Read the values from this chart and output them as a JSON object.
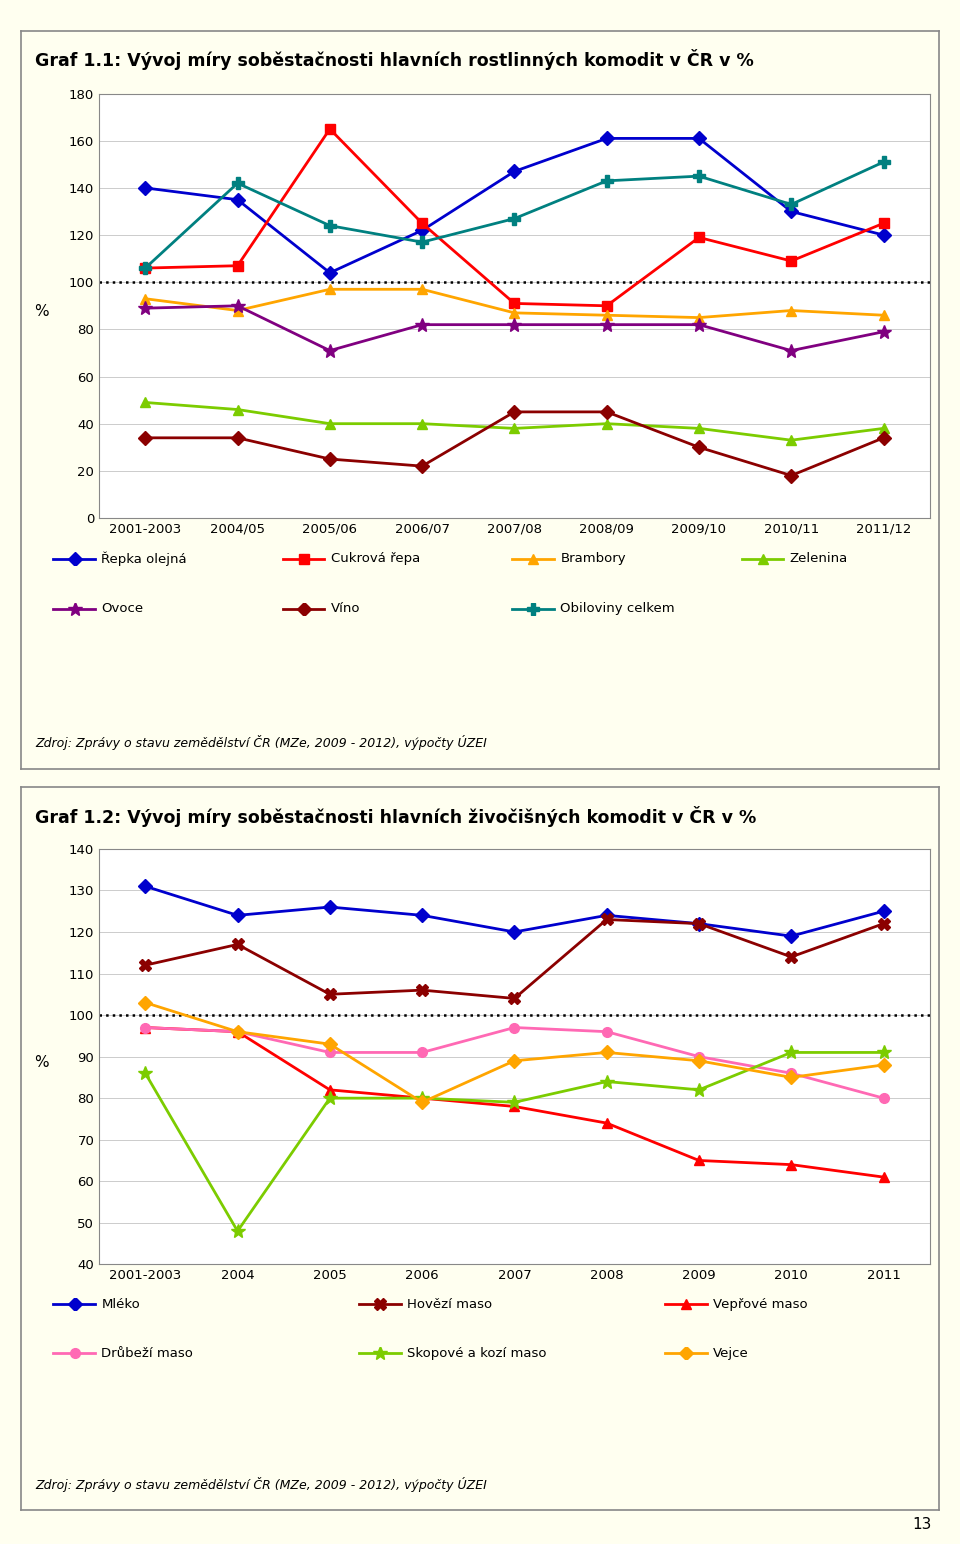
{
  "chart1": {
    "title": "Graf 1.1: Vývoj míry soběstačnosti hlavních rostlinných komodit v ČR v %",
    "xlabel_values": [
      "2001-2003",
      "2004/05",
      "2005/06",
      "2006/07",
      "2007/08",
      "2008/09",
      "2009/10",
      "2010/11",
      "2011/12"
    ],
    "ylabel": "%",
    "ylim": [
      0,
      180
    ],
    "yticks": [
      0,
      20,
      40,
      60,
      80,
      100,
      120,
      140,
      160,
      180
    ],
    "dotted_line": 100,
    "series_order": [
      "Řepka olejná",
      "Cukrová řepa",
      "Brambory",
      "Zelenina",
      "Ovoce",
      "Víno",
      "Obiloviny celkem"
    ],
    "series": {
      "Řepka olejná": {
        "values": [
          140,
          135,
          104,
          122,
          147,
          161,
          161,
          130,
          120
        ],
        "color": "#0000CD",
        "marker": "D",
        "linewidth": 2.0,
        "markersize": 7
      },
      "Cukrová řepa": {
        "values": [
          106,
          107,
          165,
          125,
          91,
          90,
          119,
          109,
          125
        ],
        "color": "#FF0000",
        "marker": "s",
        "linewidth": 2.0,
        "markersize": 7
      },
      "Brambory": {
        "values": [
          93,
          88,
          97,
          97,
          87,
          86,
          85,
          88,
          86
        ],
        "color": "#FFA500",
        "marker": "^",
        "linewidth": 2.0,
        "markersize": 7
      },
      "Zelenina": {
        "values": [
          49,
          46,
          40,
          40,
          38,
          40,
          38,
          33,
          38
        ],
        "color": "#7CCC00",
        "marker": "^",
        "linewidth": 2.0,
        "markersize": 7
      },
      "Ovoce": {
        "values": [
          89,
          90,
          71,
          82,
          82,
          82,
          82,
          71,
          79
        ],
        "color": "#800080",
        "marker": "*",
        "linewidth": 2.0,
        "markersize": 10
      },
      "Víno": {
        "values": [
          34,
          34,
          25,
          22,
          45,
          45,
          30,
          18,
          34
        ],
        "color": "#8B0000",
        "marker": "D",
        "linewidth": 2.0,
        "markersize": 7
      },
      "Obiloviny celkem": {
        "values": [
          106,
          142,
          124,
          117,
          127,
          143,
          145,
          133,
          151
        ],
        "color": "#008080",
        "marker": "P",
        "linewidth": 2.0,
        "markersize": 8
      }
    },
    "legend_cols": 4,
    "source": "Zdroj: Zprávy o stavu zemědělství ČR (MZe, 2009 - 2012), výpočty ÚZEI"
  },
  "chart2": {
    "title": "Graf 1.2: Vývoj míry soběstačnosti hlavních živočišných komodit v ČR v %",
    "xlabel_values": [
      "2001-2003",
      "2004",
      "2005",
      "2006",
      "2007",
      "2008",
      "2009",
      "2010",
      "2011"
    ],
    "ylabel": "%",
    "ylim": [
      40,
      140
    ],
    "yticks": [
      40,
      50,
      60,
      70,
      80,
      90,
      100,
      110,
      120,
      130,
      140
    ],
    "dotted_line": 100,
    "series_order": [
      "Mléko",
      "Hovězí maso",
      "Vepřové maso",
      "Drůbeží maso",
      "Skopové a kozí maso",
      "Vejce"
    ],
    "series": {
      "Mléko": {
        "values": [
          131,
          124,
          126,
          124,
          120,
          124,
          122,
          119,
          125
        ],
        "color": "#0000CD",
        "marker": "D",
        "linewidth": 2.0,
        "markersize": 7
      },
      "Hovězí maso": {
        "values": [
          112,
          117,
          105,
          106,
          104,
          123,
          122,
          114,
          122
        ],
        "color": "#8B0000",
        "marker": "X",
        "linewidth": 2.0,
        "markersize": 8
      },
      "Vepřové maso": {
        "values": [
          97,
          96,
          82,
          80,
          78,
          74,
          65,
          64,
          61
        ],
        "color": "#FF0000",
        "marker": "^",
        "linewidth": 2.0,
        "markersize": 7
      },
      "Drůbeží maso": {
        "values": [
          97,
          96,
          91,
          91,
          97,
          96,
          90,
          86,
          80
        ],
        "color": "#FF69B4",
        "marker": "o",
        "linewidth": 2.0,
        "markersize": 7
      },
      "Skopové a kozí maso": {
        "values": [
          86,
          48,
          80,
          80,
          79,
          84,
          82,
          91,
          91
        ],
        "color": "#7CCC00",
        "marker": "*",
        "linewidth": 2.0,
        "markersize": 10
      },
      "Vejce": {
        "values": [
          103,
          96,
          93,
          79,
          89,
          91,
          89,
          85,
          88
        ],
        "color": "#FFA500",
        "marker": "D",
        "linewidth": 2.0,
        "markersize": 7
      }
    },
    "legend_cols": 3,
    "source": "Zdroj: Zprávy o stavu zemědělství ČR (MZe, 2009 - 2012), výpočty ÚZEI"
  },
  "page_number": "13",
  "background_color": "#FFFFF0",
  "plot_background": "#FFFFFF",
  "border_color": "#888888"
}
